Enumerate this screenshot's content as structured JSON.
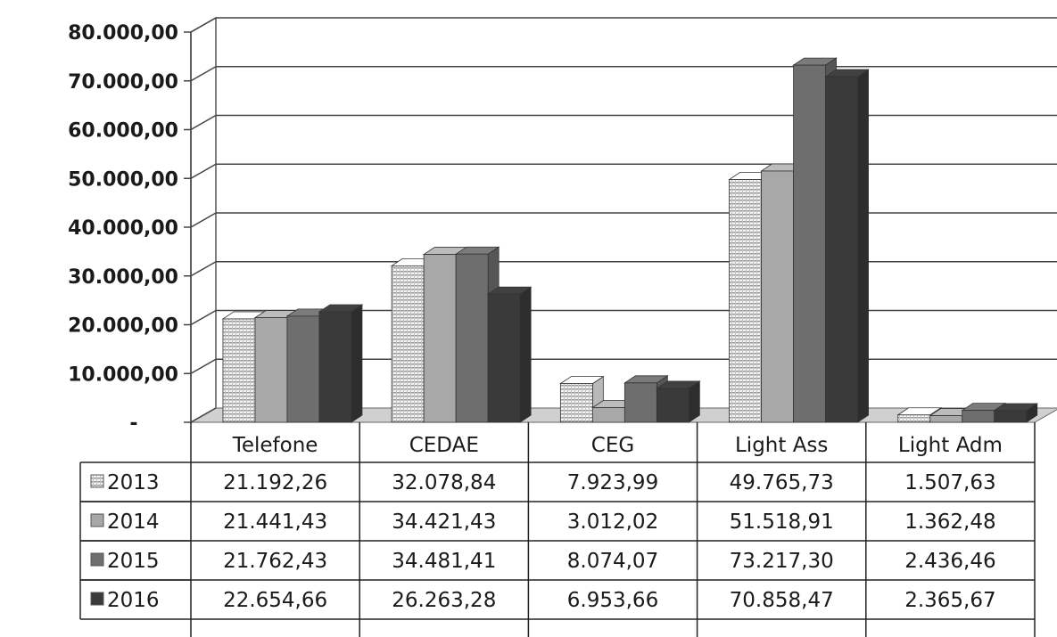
{
  "chart_data": {
    "type": "bar",
    "categories": [
      "Telefone",
      "CEDAE",
      "CEG",
      "Light Ass",
      "Light Adm"
    ],
    "series": [
      {
        "name": "2013",
        "values": [
          21192.26,
          32078.84,
          7923.99,
          49765.73,
          1507.63
        ],
        "labels": [
          "21.192,26",
          "32.078,84",
          "7.923,99",
          "49.765,73",
          "1.507,63"
        ]
      },
      {
        "name": "2014",
        "values": [
          21441.43,
          34421.43,
          3012.02,
          51518.91,
          1362.48
        ],
        "labels": [
          "21.441,43",
          "34.421,43",
          "3.012,02",
          "51.518,91",
          "1.362,48"
        ]
      },
      {
        "name": "2015",
        "values": [
          21762.43,
          34481.41,
          8074.07,
          73217.3,
          2436.46
        ],
        "labels": [
          "21.762,43",
          "34.481,41",
          "8.074,07",
          "73.217,30",
          "2.436,46"
        ]
      },
      {
        "name": "2016",
        "values": [
          22654.66,
          26263.28,
          6953.66,
          70858.47,
          2365.67
        ],
        "labels": [
          "22.654,66",
          "26.263,28",
          "6.953,66",
          "70.858,47",
          "2.365,67"
        ]
      }
    ],
    "ylim": [
      0,
      80000
    ],
    "yticks": [
      {
        "value": 80000,
        "label": "80.000,00"
      },
      {
        "value": 70000,
        "label": "70.000,00"
      },
      {
        "value": 60000,
        "label": "60.000,00"
      },
      {
        "value": 50000,
        "label": "50.000,00"
      },
      {
        "value": 40000,
        "label": "40.000,00"
      },
      {
        "value": 30000,
        "label": "30.000,00"
      },
      {
        "value": 20000,
        "label": "20.000,00"
      },
      {
        "value": 10000,
        "label": "10.000,00"
      },
      {
        "value": 0,
        "label": "-"
      }
    ],
    "grid": true,
    "legend": "data-table",
    "series_colors": [
      "#ededed",
      "#a8a8a8",
      "#6e6e6e",
      "#3a3a3a"
    ]
  }
}
